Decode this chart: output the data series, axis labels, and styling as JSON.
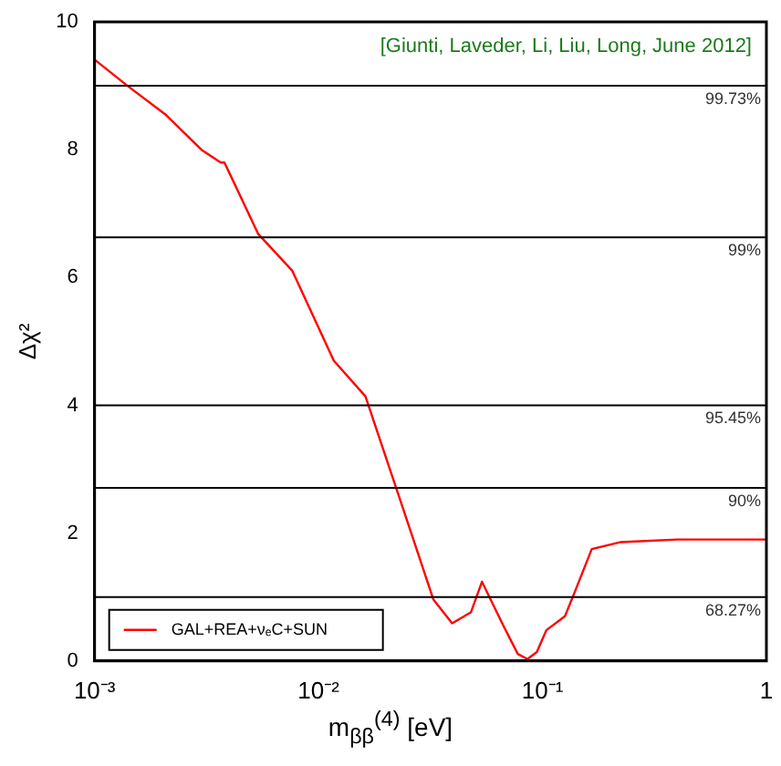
{
  "chart_data": {
    "type": "line",
    "xlabel": "m$_{ββ}$$^{(4)}$   [eV]",
    "ylabel": "Δχ²",
    "annotations": [
      "[Giunti, Laveder, Li, Liu, Long, June 2012]",
      {
        "text": "99.73%",
        "y": 9
      },
      {
        "text": "99%",
        "y": 6.63
      },
      {
        "text": "95.45%",
        "y": 4
      },
      {
        "text": "90%",
        "y": 2.71
      },
      {
        "text": "68.27%",
        "y": 1
      }
    ],
    "log": "x",
    "grid": false,
    "legend": "bottom left",
    "marker": "none",
    "line_style": "solid",
    "xlim": [
      0.001,
      1
    ],
    "xticks": [
      {
        "value": 0.001,
        "label": "10⁻³"
      },
      {
        "value": 0.01,
        "label": "10⁻²"
      },
      {
        "value": 0.1,
        "label": "10⁻¹"
      },
      1
    ],
    "ylim": [
      0,
      10
    ],
    "yticks": [
      0,
      2,
      4,
      6,
      8,
      10
    ],
    "ref_lines": [
      {
        "axis": "y",
        "value": 9,
        "color": "#000000"
      },
      {
        "axis": "y",
        "value": 6.63,
        "color": "#000000"
      },
      {
        "axis": "y",
        "value": 4,
        "color": "#000000"
      },
      {
        "axis": "y",
        "value": 2.71,
        "color": "#000000"
      },
      {
        "axis": "y",
        "value": 1,
        "color": "#000000"
      }
    ],
    "series": [
      {
        "name": "GAL+REA+νₑC+SUN",
        "color": "#ff0000",
        "x": [
          0.001,
          0.00139,
          0.00209,
          0.003,
          0.00366,
          0.0038,
          0.00538,
          0.00762,
          0.0117,
          0.0162,
          0.0221,
          0.0326,
          0.0395,
          0.0479,
          0.0537,
          0.0667,
          0.0776,
          0.0857,
          0.0944,
          0.104,
          0.126,
          0.138,
          0.166,
          0.224,
          0.4,
          1
        ],
        "values": [
          9.41,
          9.01,
          8.54,
          8.0,
          7.8,
          7.8,
          6.68,
          6.11,
          4.7,
          4.14,
          2.73,
          0.96,
          0.59,
          0.76,
          1.24,
          0.56,
          0.11,
          0.03,
          0.14,
          0.48,
          0.7,
          1.04,
          1.75,
          1.86,
          1.9,
          1.9
        ]
      }
    ]
  }
}
